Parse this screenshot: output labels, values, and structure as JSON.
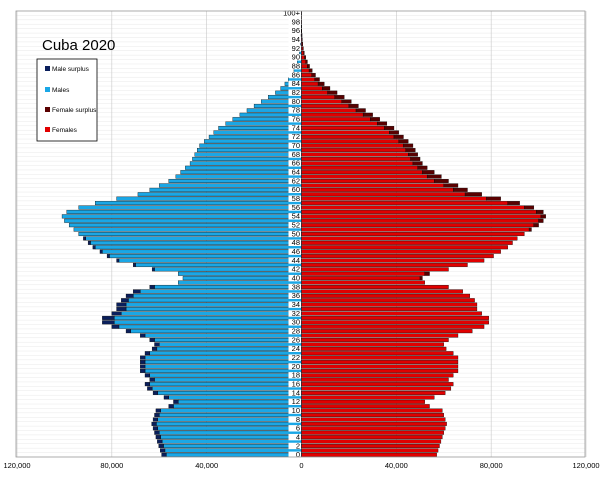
{
  "chart_data": {
    "type": "bar",
    "title": "Cuba 2020",
    "xlabel": "",
    "ylabel": "",
    "xlim": [
      -120000,
      120000
    ],
    "x_ticks": [
      "120,000",
      "80,000",
      "40,000",
      "0",
      "40,000",
      "80,000",
      "120,000"
    ],
    "x_tick_values": [
      -120000,
      -80000,
      -40000,
      0,
      40000,
      80000,
      120000
    ],
    "grid": true,
    "legend_position": "top-left",
    "legend": [
      {
        "name": "Male surplus",
        "color": "#0a1f5c"
      },
      {
        "name": "Males",
        "color": "#1aa7e6"
      },
      {
        "name": "Female surplus",
        "color": "#5a0000"
      },
      {
        "name": "Females",
        "color": "#e10000"
      }
    ],
    "age_labels": [
      "0",
      "2",
      "4",
      "6",
      "8",
      "10",
      "12",
      "14",
      "16",
      "18",
      "20",
      "22",
      "24",
      "26",
      "28",
      "30",
      "32",
      "34",
      "36",
      "38",
      "40",
      "42",
      "44",
      "46",
      "48",
      "50",
      "52",
      "54",
      "56",
      "58",
      "60",
      "62",
      "64",
      "66",
      "68",
      "70",
      "72",
      "74",
      "76",
      "78",
      "80",
      "82",
      "84",
      "86",
      "88",
      "90",
      "92",
      "94",
      "96",
      "98",
      "100+"
    ],
    "ages": [
      0,
      1,
      2,
      3,
      4,
      5,
      6,
      7,
      8,
      9,
      10,
      11,
      12,
      13,
      14,
      15,
      16,
      17,
      18,
      19,
      20,
      21,
      22,
      23,
      24,
      25,
      26,
      27,
      28,
      29,
      30,
      31,
      32,
      33,
      34,
      35,
      36,
      37,
      38,
      39,
      40,
      41,
      42,
      43,
      44,
      45,
      46,
      47,
      48,
      49,
      50,
      51,
      52,
      53,
      54,
      55,
      56,
      57,
      58,
      59,
      60,
      61,
      62,
      63,
      64,
      65,
      66,
      67,
      68,
      69,
      70,
      71,
      72,
      73,
      74,
      75,
      76,
      77,
      78,
      79,
      80,
      81,
      82,
      83,
      84,
      85,
      86,
      87,
      88,
      89,
      90,
      91,
      92,
      93,
      94,
      95,
      96,
      97,
      98,
      99,
      100
    ],
    "series": [
      {
        "name": "Males",
        "values": [
          59000,
          59600,
          60200,
          60800,
          61400,
          62000,
          62600,
          63200,
          62600,
          62000,
          61400,
          56000,
          54000,
          58000,
          62600,
          65000,
          66000,
          64000,
          66000,
          68000,
          68000,
          68000,
          68000,
          66000,
          63000,
          62000,
          64000,
          68000,
          74000,
          80000,
          84000,
          84000,
          80000,
          78000,
          78000,
          76000,
          74000,
          71000,
          64000,
          52000,
          50000,
          52000,
          63000,
          71000,
          78000,
          82000,
          85000,
          88000,
          90000,
          92000,
          94000,
          96000,
          98000,
          100000,
          101000,
          99000,
          94000,
          87000,
          78000,
          69000,
          64000,
          60000,
          56000,
          53000,
          51000,
          49000,
          47000,
          46000,
          45000,
          44000,
          43000,
          41000,
          39000,
          37000,
          35000,
          32000,
          29000,
          26000,
          23000,
          20000,
          17000,
          14000,
          11000,
          8800,
          7000,
          5600,
          4300,
          3200,
          2400,
          1800,
          1300,
          900,
          600,
          420,
          290,
          190,
          120,
          70,
          40,
          20,
          12
        ]
      },
      {
        "name": "Females",
        "values": [
          57000,
          57600,
          58200,
          58800,
          59400,
          60000,
          60600,
          61200,
          60600,
          60000,
          59400,
          54000,
          52000,
          56000,
          60600,
          63000,
          64000,
          62000,
          64000,
          66000,
          66000,
          66000,
          66000,
          64000,
          61000,
          60000,
          62000,
          66000,
          72000,
          77000,
          79000,
          79000,
          76000,
          74000,
          74000,
          73000,
          71000,
          68000,
          62000,
          52000,
          51000,
          54000,
          62000,
          70000,
          77000,
          81000,
          84000,
          87000,
          89000,
          91000,
          94000,
          97000,
          100000,
          102000,
          103000,
          102000,
          98000,
          92000,
          84000,
          76000,
          70000,
          66000,
          62000,
          59000,
          56000,
          53000,
          51000,
          50000,
          49000,
          48000,
          47000,
          45000,
          43000,
          41000,
          39000,
          36000,
          33000,
          30000,
          27000,
          24000,
          21000,
          18000,
          15000,
          12000,
          9600,
          7600,
          5900,
          4500,
          3400,
          2500,
          1800,
          1200,
          800,
          540,
          350,
          220,
          130,
          75,
          40,
          20,
          10
        ]
      }
    ]
  }
}
